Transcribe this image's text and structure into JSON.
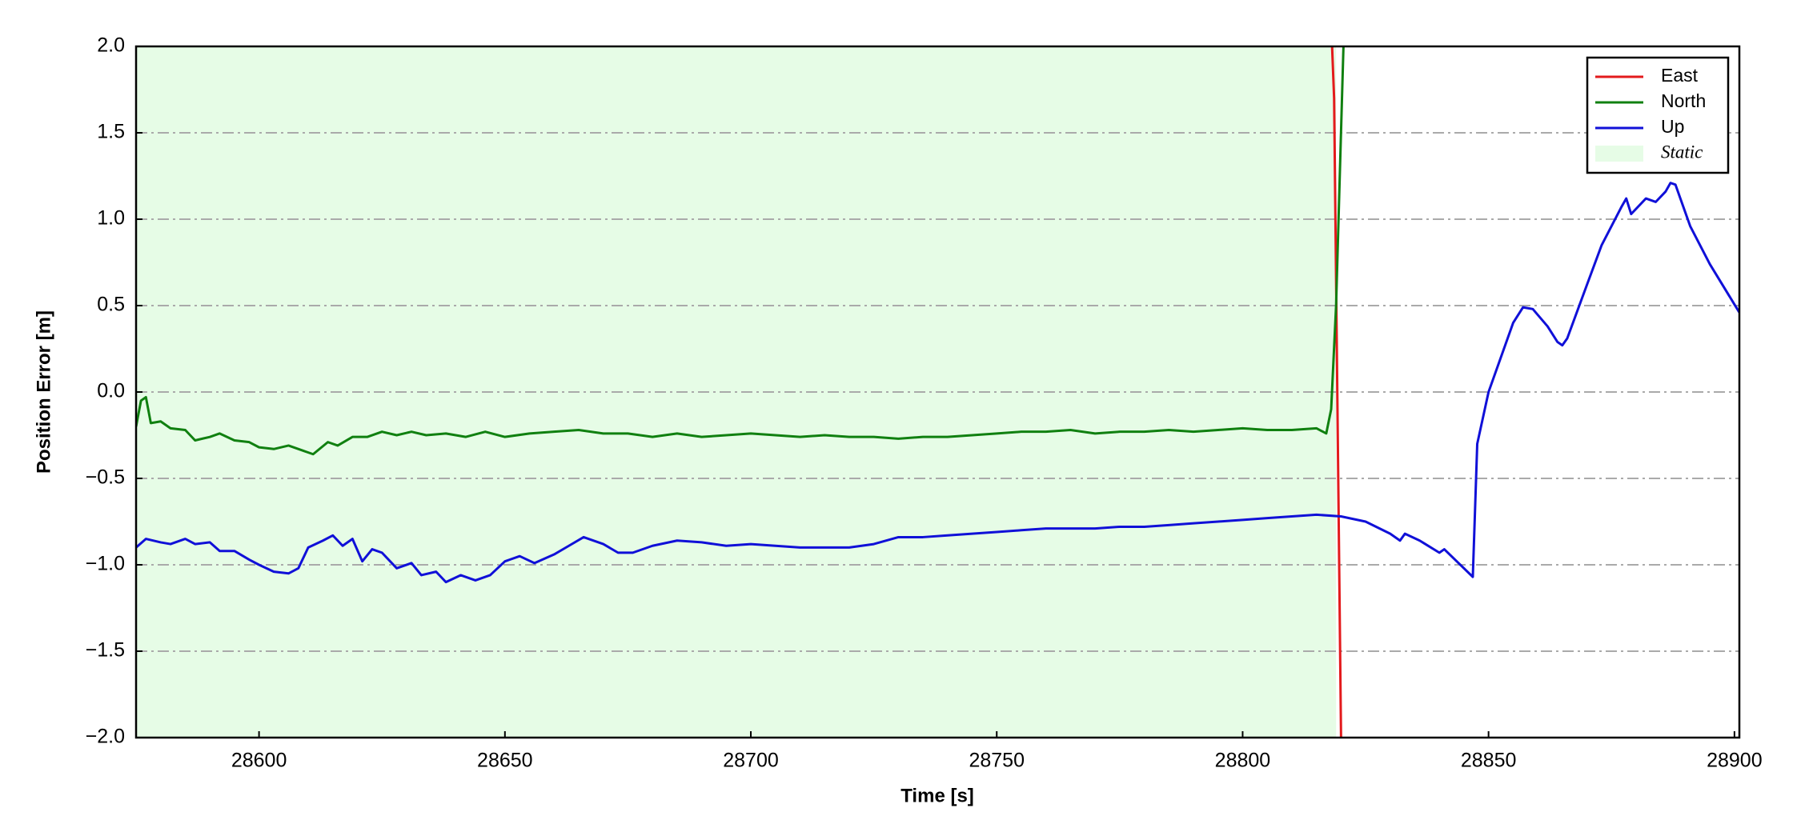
{
  "chart_data": {
    "type": "line",
    "xlabel": "Time [s]",
    "ylabel": "Position Error [m]",
    "xlim": [
      28575,
      28901
    ],
    "ylim": [
      -2.0,
      2.0
    ],
    "xticks": [
      28600,
      28650,
      28700,
      28750,
      28800,
      28850,
      28900
    ],
    "yticks": [
      {
        "value": -2.0,
        "label": "−2.0"
      },
      {
        "value": -1.5,
        "label": "−1.5"
      },
      {
        "value": -1.0,
        "label": "−1.0"
      },
      {
        "value": -0.5,
        "label": "−0.5"
      },
      {
        "value": 0.0,
        "label": "0.0"
      },
      0.5,
      {
        "value": 1.0,
        "label": "1.0"
      },
      1.5,
      {
        "value": 2.0,
        "label": "2.0"
      }
    ],
    "grid": true,
    "legend": "upper right",
    "span": {
      "name": "Static",
      "color": "#e6fce6",
      "x": [
        28575,
        28819
      ]
    },
    "series": [
      {
        "name": "East",
        "color": "#e31a1c",
        "x": [
          28817.5,
          28818.6,
          28820.2
        ],
        "values": [
          2.5,
          1.7,
          -2.5
        ]
      },
      {
        "name": "North",
        "color": "#108010",
        "x": [
          28575,
          28576,
          28577,
          28578,
          28580,
          28582,
          28585,
          28587,
          28590,
          28592,
          28595,
          28598,
          28600,
          28603,
          28606,
          28609,
          28611,
          28614,
          28616,
          28619,
          28622,
          28625,
          28628,
          28631,
          28634,
          28638,
          28642,
          28646,
          28650,
          28655,
          28660,
          28665,
          28670,
          28675,
          28680,
          28685,
          28690,
          28695,
          28700,
          28705,
          28710,
          28715,
          28720,
          28725,
          28730,
          28735,
          28740,
          28745,
          28750,
          28755,
          28760,
          28765,
          28770,
          28775,
          28780,
          28785,
          28790,
          28795,
          28800,
          28805,
          28810,
          28815,
          28817,
          28818,
          28819,
          28820,
          28821
        ],
        "values": [
          -0.2,
          -0.05,
          -0.03,
          -0.18,
          -0.17,
          -0.21,
          -0.22,
          -0.28,
          -0.26,
          -0.24,
          -0.28,
          -0.29,
          -0.32,
          -0.33,
          -0.31,
          -0.34,
          -0.36,
          -0.29,
          -0.31,
          -0.26,
          -0.26,
          -0.23,
          -0.25,
          -0.23,
          -0.25,
          -0.24,
          -0.26,
          -0.23,
          -0.26,
          -0.24,
          -0.23,
          -0.22,
          -0.24,
          -0.24,
          -0.26,
          -0.24,
          -0.26,
          -0.25,
          -0.24,
          -0.25,
          -0.26,
          -0.25,
          -0.26,
          -0.26,
          -0.27,
          -0.26,
          -0.26,
          -0.25,
          -0.24,
          -0.23,
          -0.23,
          -0.22,
          -0.24,
          -0.23,
          -0.23,
          -0.22,
          -0.23,
          -0.22,
          -0.21,
          -0.22,
          -0.22,
          -0.21,
          -0.24,
          -0.1,
          0.5,
          1.5,
          2.5
        ]
      },
      {
        "name": "Up",
        "color": "#1010d8",
        "x": [
          28575,
          28577,
          28580,
          28582,
          28585,
          28587,
          28590,
          28592,
          28595,
          28598,
          28600,
          28603,
          28606,
          28608,
          28610,
          28613,
          28615,
          28617,
          28619,
          28621,
          28623,
          28625,
          28628,
          28631,
          28633,
          28636,
          28638,
          28641,
          28644,
          28647,
          28650,
          28653,
          28656,
          28660,
          28663,
          28666,
          28670,
          28673,
          28676,
          28680,
          28685,
          28690,
          28695,
          28700,
          28705,
          28710,
          28715,
          28720,
          28725,
          28730,
          28735,
          28740,
          28745,
          28750,
          28755,
          28760,
          28765,
          28770,
          28775,
          28780,
          28785,
          28790,
          28795,
          28800,
          28805,
          28810,
          28815,
          28820,
          28825,
          28830,
          28832,
          28833,
          28836,
          28840,
          28841,
          28846.8,
          28847.7,
          28850,
          28855,
          28857,
          28859,
          28862,
          28864,
          28865,
          28866,
          28870,
          28873,
          28877,
          28878,
          28879,
          28882,
          28884,
          28886,
          28887,
          28888,
          28891,
          28895,
          28901
        ],
        "values": [
          -0.9,
          -0.85,
          -0.87,
          -0.88,
          -0.85,
          -0.88,
          -0.87,
          -0.92,
          -0.92,
          -0.97,
          -1.0,
          -1.04,
          -1.05,
          -1.02,
          -0.9,
          -0.86,
          -0.83,
          -0.89,
          -0.85,
          -0.98,
          -0.91,
          -0.93,
          -1.02,
          -0.99,
          -1.06,
          -1.04,
          -1.1,
          -1.06,
          -1.09,
          -1.06,
          -0.98,
          -0.95,
          -0.99,
          -0.94,
          -0.89,
          -0.84,
          -0.88,
          -0.93,
          -0.93,
          -0.89,
          -0.86,
          -0.87,
          -0.89,
          -0.88,
          -0.89,
          -0.9,
          -0.9,
          -0.9,
          -0.88,
          -0.84,
          -0.84,
          -0.83,
          -0.82,
          -0.81,
          -0.8,
          -0.79,
          -0.79,
          -0.79,
          -0.78,
          -0.78,
          -0.77,
          -0.76,
          -0.75,
          -0.74,
          -0.73,
          -0.72,
          -0.71,
          -0.72,
          -0.75,
          -0.82,
          -0.86,
          -0.82,
          -0.86,
          -0.93,
          -0.91,
          -1.07,
          -0.3,
          0.0,
          0.4,
          0.49,
          0.48,
          0.38,
          0.29,
          0.27,
          0.31,
          0.62,
          0.85,
          1.07,
          1.12,
          1.03,
          1.12,
          1.1,
          1.16,
          1.21,
          1.2,
          0.96,
          0.74,
          0.46
        ]
      }
    ]
  }
}
